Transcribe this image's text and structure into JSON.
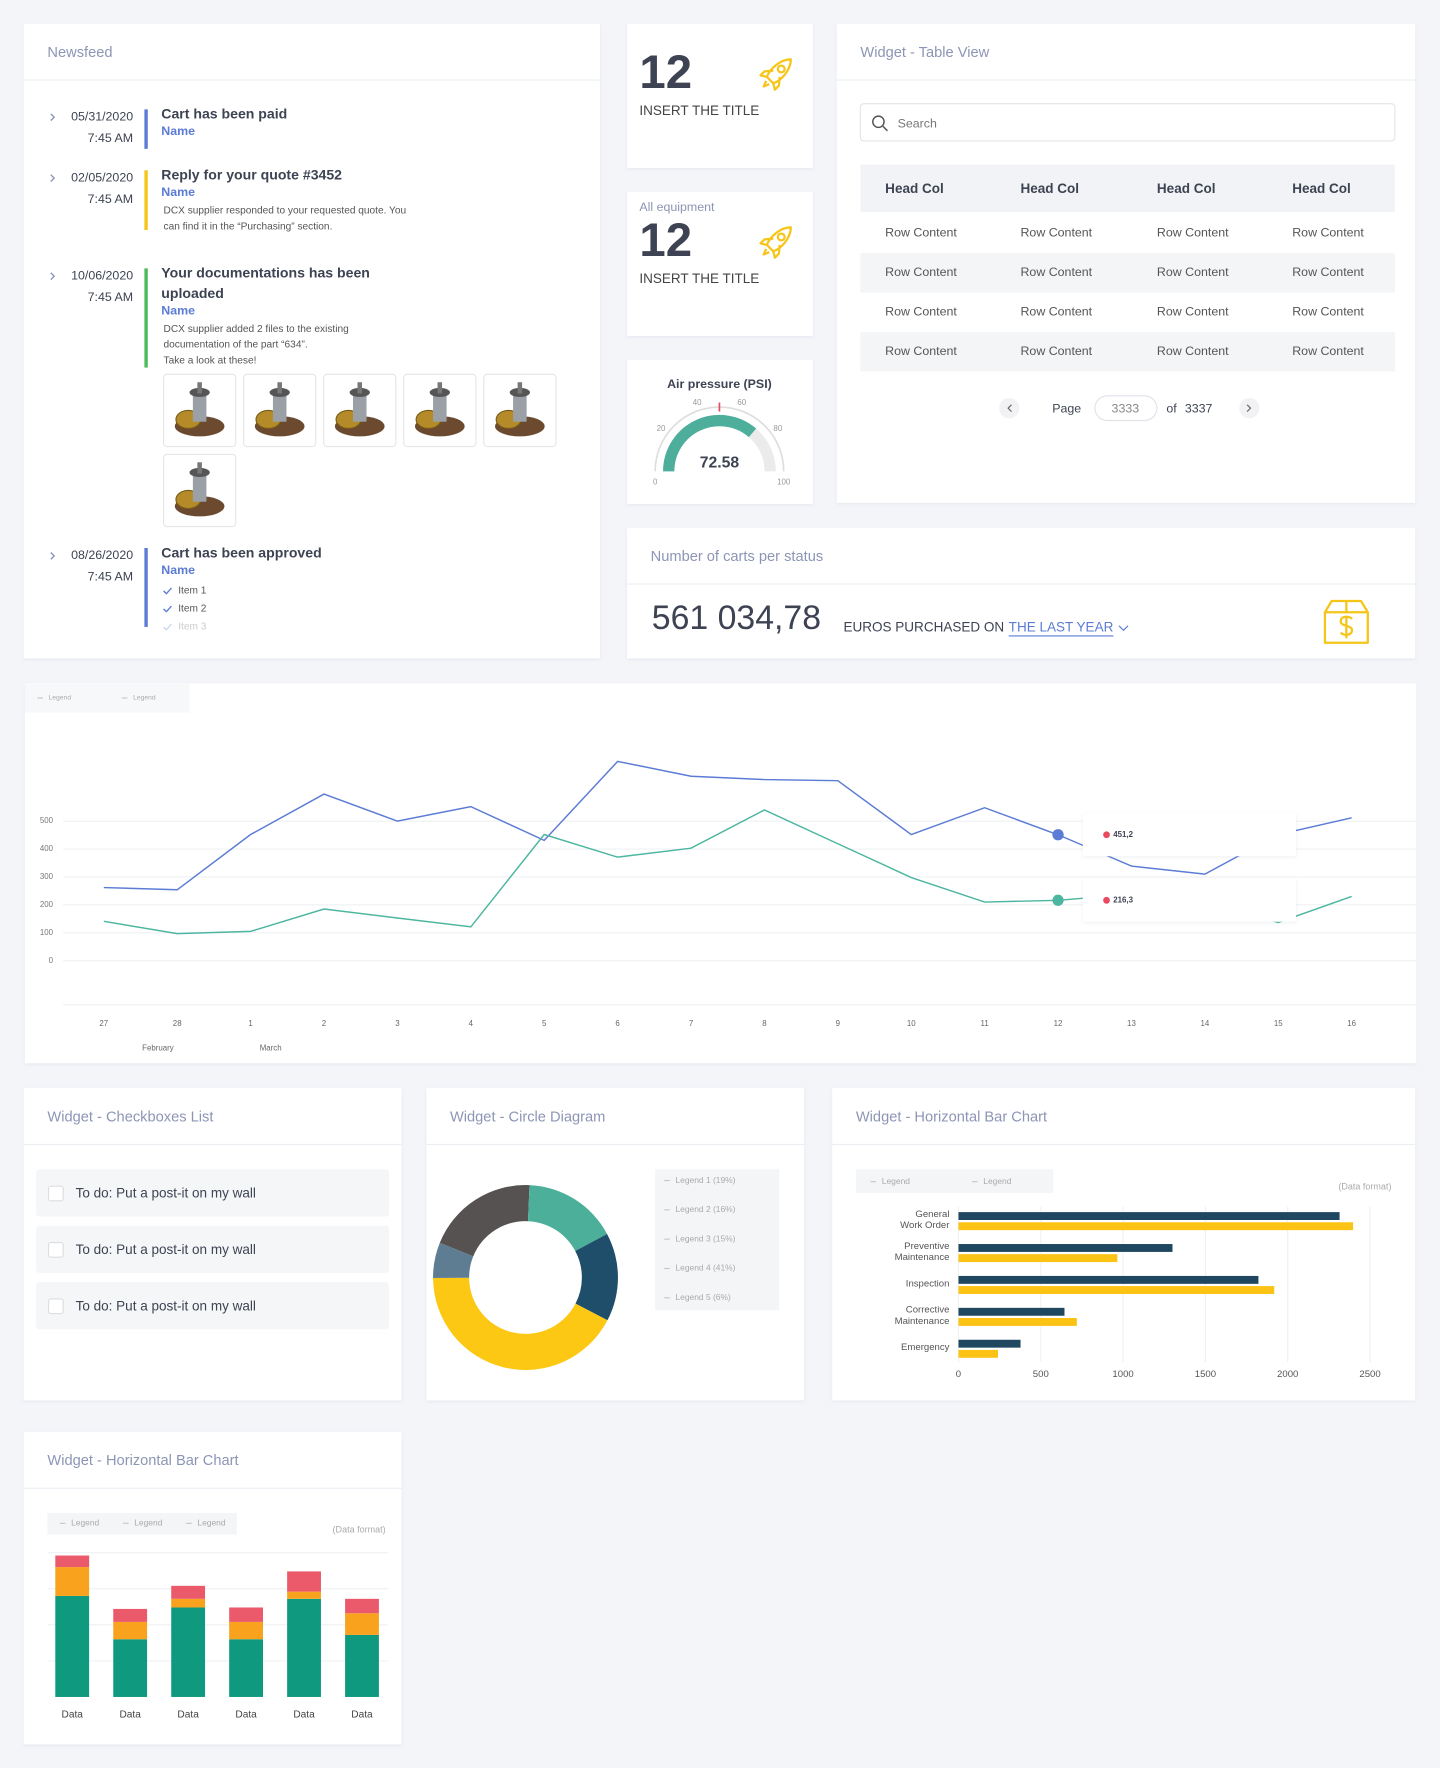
{
  "newsfeed": {
    "title": "Newsfeed",
    "items": [
      {
        "date": "05/31/2020",
        "time": "7:45 AM",
        "title": [
          "Cart has been paid"
        ],
        "name": "Name",
        "color": "#5b7bd5"
      },
      {
        "date": "02/05/2020",
        "time": "7:45 AM",
        "title": [
          "Reply for your quote #3452"
        ],
        "name": "Name",
        "text": [
          "DCX supplier responded to your requested quote. You",
          "can find it in the “Purchasing” section."
        ],
        "color": "#f5c518"
      },
      {
        "date": "10/06/2020",
        "time": "7:45 AM",
        "title": [
          "Your documentations has been",
          "uploaded"
        ],
        "name": "Name",
        "text": [
          "DCX supplier added 2 files to the existing",
          "documentation  of the part “634”.",
          "Take a look at these!"
        ],
        "color": "#4cbb5a"
      },
      {
        "date": "08/26/2020",
        "time": "7:45 AM",
        "title": [
          "Cart has been approved"
        ],
        "name": "Name",
        "checklist": [
          "Item 1",
          "Item 2",
          "Item 3"
        ],
        "color": "#5b7bd5"
      }
    ]
  },
  "kpis": [
    {
      "value": 12,
      "label": "INSERT THE TITLE"
    },
    {
      "caption": "All equipment",
      "value": 12,
      "label": "INSERT THE TITLE"
    }
  ],
  "table": {
    "title": "Widget - Table View",
    "search": "Search",
    "headers": [
      "Head Col",
      "Head Col",
      "Head Col",
      "Head Col"
    ],
    "rows": [
      [
        "Row Content",
        "Row Content",
        "Row Content",
        "Row Content"
      ],
      [
        "Row Content",
        "Row Content",
        "Row Content",
        "Row Content"
      ],
      [
        "Row Content",
        "Row Content",
        "Row Content",
        "Row Content"
      ],
      [
        "Row Content",
        "Row Content",
        "Row Content",
        "Row Content"
      ]
    ],
    "pagination": {
      "page_label": "Page",
      "page": "3333",
      "of": "of",
      "total": "3337"
    }
  },
  "gauge": {
    "title": "Air pressure (PSI)",
    "value": 72.58,
    "lim": [
      0,
      100
    ],
    "ticks": [
      0,
      20,
      40,
      60,
      80,
      100
    ],
    "color": "#4cae9b"
  },
  "carts": {
    "title": "Number of carts per status",
    "amount": "561 034,78",
    "text": "EUROS PURCHASED ON",
    "period": "THE LAST YEAR"
  },
  "checkboxes": {
    "title": "Widget - Checkboxes List",
    "items": [
      "To do: Put a post-it on my wall",
      "To do: Put a post-it on my wall",
      "To do: Put a post-it on my wall"
    ]
  },
  "chart_data": [
    {
      "type": "line",
      "categories": [
        "27",
        "28",
        "1",
        "2",
        "3",
        "4",
        "5",
        "6",
        "7",
        "8",
        "9",
        "10",
        "11",
        "12",
        "13",
        "14",
        "15",
        "16"
      ],
      "months": [
        "February",
        "March"
      ],
      "series": [
        {
          "name": "Legend",
          "color": "#5b7bd5",
          "values": [
            262,
            254,
            452,
            597,
            500,
            552,
            431,
            714,
            661,
            649,
            645,
            452,
            548,
            451.2,
            339,
            310,
            452,
            512
          ],
          "value_labels": [
            null,
            null,
            null,
            null,
            null,
            null,
            null,
            null,
            null,
            null,
            null,
            null,
            null,
            "451,2",
            null,
            null,
            null,
            null
          ]
        },
        {
          "name": "Legend",
          "color": "#4db6a0",
          "values": [
            141,
            97,
            105,
            185,
            153,
            121,
            452,
            371,
            403,
            540,
            419,
            298,
            210,
            216.3,
            238,
            210,
            137,
            230
          ],
          "value_labels": [
            null,
            null,
            null,
            null,
            null,
            null,
            null,
            null,
            null,
            null,
            null,
            null,
            null,
            "216,3",
            null,
            null,
            null,
            null
          ]
        }
      ],
      "ylim": [
        0,
        800
      ],
      "yticks": [
        0,
        100,
        200,
        300,
        400,
        500
      ],
      "grid": true
    },
    {
      "type": "donut",
      "title": "Widget - Circle Diagram",
      "labels": [
        "Legend 1 (19%)",
        "Legend 2 (16%)",
        "Legend 3 (15%)",
        "Legend 4 (41%)",
        "Legend 5 (6%)"
      ],
      "values": [
        19,
        16,
        15,
        41,
        6
      ],
      "colors": [
        "#565252",
        "#4caf9a",
        "#1f4e6b",
        "#fcc814",
        "#5f7d92"
      ]
    },
    {
      "type": "hbar",
      "title": "Widget - Horizontal Bar Chart",
      "note": "(Data format)",
      "categories": [
        [
          "General",
          "Work Order"
        ],
        [
          "Preventive",
          "Maintenance"
        ],
        [
          "Inspection"
        ],
        [
          "Corrective",
          "Maintenance"
        ],
        [
          "Emergency"
        ]
      ],
      "series": [
        {
          "name": "Legend",
          "color": "#1f4860",
          "values": [
            2315,
            1300,
            1822,
            644,
            377
          ]
        },
        {
          "name": "Legend",
          "color": "#fcc314",
          "values": [
            2397,
            965,
            1918,
            719,
            240
          ]
        }
      ],
      "xlim": [
        0,
        2500
      ],
      "xticks": [
        0,
        500,
        1000,
        1500,
        2000,
        2500
      ],
      "grid": true
    },
    {
      "type": "stacked_bar",
      "title": "Widget - Horizontal Bar Chart",
      "note": "(Data format)",
      "categories": [
        "Data",
        "Data",
        "Data",
        "Data",
        "Data",
        "Data"
      ],
      "series": [
        {
          "name": "Legend",
          "color": "#0f9a80",
          "values": [
            70,
            40,
            62,
            40,
            68,
            43
          ]
        },
        {
          "name": "Legend",
          "color": "#f9a21e",
          "values": [
            20,
            12,
            6,
            12,
            5,
            15
          ]
        },
        {
          "name": "Legend",
          "color": "#ea5a6a",
          "values": [
            8,
            9,
            9,
            10,
            14,
            10
          ]
        }
      ],
      "ylim": [
        0,
        100
      ],
      "grid": true
    }
  ]
}
